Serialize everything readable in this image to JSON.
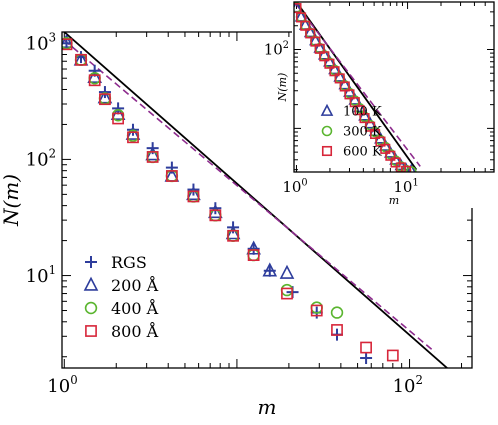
{
  "chart_data": [
    {
      "type": "scatter",
      "xlabel": "m",
      "ylabel": "N(m)",
      "x_scale": "log",
      "y_scale": "log",
      "xlim": [
        0.97,
        230
      ],
      "ylim": [
        1.6,
        1250
      ],
      "x_ticks": [
        {
          "value": 1,
          "base": "10",
          "exp": "0"
        },
        {
          "value": 100,
          "base": "10",
          "exp": "2"
        }
      ],
      "y_ticks": [
        {
          "value": 10,
          "base": "10",
          "exp": "1"
        },
        {
          "value": 100,
          "base": "10",
          "exp": "2"
        },
        {
          "value": 1000,
          "base": "10",
          "exp": "3"
        }
      ],
      "legend_position": "bottom-left",
      "lines": [
        {
          "style": "solid",
          "color": "#000000",
          "points": [
            [
              1,
              1250
            ],
            [
              165,
              1.6
            ]
          ]
        },
        {
          "style": "dashed",
          "color": "#8e2c8e",
          "points": [
            [
              1,
              1060
            ],
            [
              140,
              2.2
            ]
          ]
        }
      ],
      "series": [
        {
          "name": "RGS",
          "marker": "plus",
          "color": "#2e3d9c",
          "points": [
            [
              1.03,
              1000
            ],
            [
              1.25,
              760
            ],
            [
              1.5,
              580
            ],
            [
              1.72,
              380
            ],
            [
              2.05,
              275
            ],
            [
              2.5,
              180
            ],
            [
              3.25,
              125
            ],
            [
              4.2,
              85
            ],
            [
              5.6,
              55
            ],
            [
              7.5,
              38
            ],
            [
              9.5,
              26
            ],
            [
              12.5,
              17
            ],
            [
              15.5,
              11
            ],
            [
              21,
              7.2
            ],
            [
              29,
              4.8
            ],
            [
              38,
              3.1
            ],
            [
              56,
              1.95
            ]
          ]
        },
        {
          "name": "200 Å",
          "marker": "triangle",
          "color": "#2e3d9c",
          "points": [
            [
              1.03,
              1020
            ],
            [
              1.25,
              720
            ],
            [
              1.5,
              510
            ],
            [
              1.72,
              340
            ],
            [
              2.05,
              245
            ],
            [
              2.5,
              165
            ],
            [
              3.25,
              110
            ],
            [
              4.2,
              72
            ],
            [
              5.6,
              50
            ],
            [
              7.5,
              35
            ],
            [
              9.5,
              23
            ],
            [
              12.5,
              17
            ],
            [
              15.5,
              11
            ],
            [
              19.5,
              10.5
            ]
          ]
        },
        {
          "name": "400 Å",
          "marker": "circle",
          "color": "#5ab52f",
          "points": [
            [
              1.03,
              1000
            ],
            [
              1.25,
              720
            ],
            [
              1.5,
              500
            ],
            [
              1.72,
              335
            ],
            [
              2.05,
              240
            ],
            [
              2.5,
              160
            ],
            [
              3.25,
              105
            ],
            [
              4.2,
              72
            ],
            [
              5.6,
              48
            ],
            [
              7.5,
              33
            ],
            [
              9.5,
              22
            ],
            [
              12.5,
              15
            ],
            [
              19.5,
              7.5
            ],
            [
              29,
              5.3
            ],
            [
              38,
              4.8
            ]
          ]
        },
        {
          "name": "800 Å",
          "marker": "square",
          "color": "#d7263a",
          "points": [
            [
              1.03,
              980
            ],
            [
              1.25,
              720
            ],
            [
              1.5,
              480
            ],
            [
              1.72,
              330
            ],
            [
              2.05,
              225
            ],
            [
              2.5,
              155
            ],
            [
              3.25,
              105
            ],
            [
              4.2,
              72
            ],
            [
              5.6,
              48
            ],
            [
              7.5,
              33
            ],
            [
              9.5,
              22
            ],
            [
              12.5,
              15
            ],
            [
              19.5,
              7
            ],
            [
              29,
              5
            ],
            [
              38,
              3.4
            ],
            [
              56,
              2.4
            ],
            [
              80,
              2.05
            ]
          ]
        }
      ]
    },
    {
      "type": "scatter",
      "xlabel": "m",
      "ylabel": "N(m)",
      "x_scale": "log",
      "y_scale": "log",
      "xlim": [
        0.95,
        60
      ],
      "ylim": [
        2.8,
        400
      ],
      "x_ticks": [
        {
          "value": 1,
          "base": "10",
          "exp": "0"
        },
        {
          "value": 10,
          "base": "10",
          "exp": "1"
        }
      ],
      "y_ticks": [
        {
          "value": 100,
          "base": "10",
          "exp": "2"
        }
      ],
      "legend_position": "bottom-left",
      "lines": [
        {
          "style": "solid",
          "color": "#000000",
          "points": [
            [
              1.0,
              400
            ],
            [
              12,
              3.0
            ]
          ]
        },
        {
          "style": "dashed",
          "color": "#8e2c8e",
          "points": [
            [
              1.0,
              370
            ],
            [
              13,
              3.3
            ]
          ]
        }
      ],
      "series": [
        {
          "name": "100 K",
          "marker": "triangle",
          "color": "#2e3d9c",
          "points": [
            [
              1.0,
              340
            ],
            [
              1.1,
              260
            ],
            [
              1.2,
              205
            ],
            [
              1.33,
              165
            ],
            [
              1.48,
              130
            ],
            [
              1.62,
              105
            ],
            [
              1.78,
              86
            ],
            [
              1.98,
              70
            ],
            [
              2.2,
              56
            ],
            [
              2.45,
              45
            ],
            [
              2.72,
              36
            ],
            [
              3.0,
              29
            ],
            [
              3.35,
              23
            ],
            [
              3.7,
              18.5
            ],
            [
              4.1,
              14.5
            ],
            [
              4.6,
              11.5
            ],
            [
              5.1,
              9.2
            ],
            [
              5.7,
              7.4
            ],
            [
              6.3,
              6.0
            ],
            [
              7.0,
              4.9
            ],
            [
              7.8,
              4.0
            ],
            [
              8.7,
              3.4
            ],
            [
              9.7,
              3.0
            ],
            [
              10.8,
              2.9
            ]
          ]
        },
        {
          "name": "300 K",
          "marker": "circle",
          "color": "#5ab52f",
          "points": [
            [
              1.0,
              340
            ],
            [
              1.1,
              258
            ],
            [
              1.2,
              203
            ],
            [
              1.33,
              162
            ],
            [
              1.48,
              128
            ],
            [
              1.62,
              104
            ],
            [
              1.78,
              84
            ],
            [
              1.98,
              68
            ],
            [
              2.2,
              55
            ],
            [
              2.45,
              44
            ],
            [
              2.72,
              35
            ],
            [
              3.0,
              28
            ],
            [
              3.35,
              22.5
            ],
            [
              3.7,
              18
            ],
            [
              4.1,
              14
            ],
            [
              4.6,
              11
            ],
            [
              5.1,
              9.0
            ],
            [
              5.7,
              7.1
            ],
            [
              6.3,
              5.8
            ],
            [
              7.0,
              4.7
            ],
            [
              7.8,
              3.9
            ],
            [
              8.7,
              3.3
            ],
            [
              9.7,
              2.95
            ],
            [
              10.8,
              2.85
            ]
          ]
        },
        {
          "name": "600 K",
          "marker": "square",
          "color": "#d7263a",
          "points": [
            [
              1.0,
              335
            ],
            [
              1.1,
              255
            ],
            [
              1.2,
              200
            ],
            [
              1.33,
              160
            ],
            [
              1.48,
              126
            ],
            [
              1.62,
              102
            ],
            [
              1.78,
              82
            ],
            [
              1.98,
              66
            ],
            [
              2.2,
              53
            ],
            [
              2.45,
              43
            ],
            [
              2.72,
              34
            ],
            [
              3.0,
              27
            ],
            [
              3.35,
              21.5
            ],
            [
              3.7,
              17
            ],
            [
              4.1,
              13.5
            ],
            [
              4.6,
              10.5
            ],
            [
              5.1,
              8.5
            ],
            [
              5.7,
              6.8
            ],
            [
              6.3,
              5.5
            ],
            [
              7.0,
              4.5
            ],
            [
              7.8,
              3.7
            ],
            [
              8.7,
              3.2
            ],
            [
              9.7,
              2.9
            ]
          ]
        }
      ]
    }
  ]
}
